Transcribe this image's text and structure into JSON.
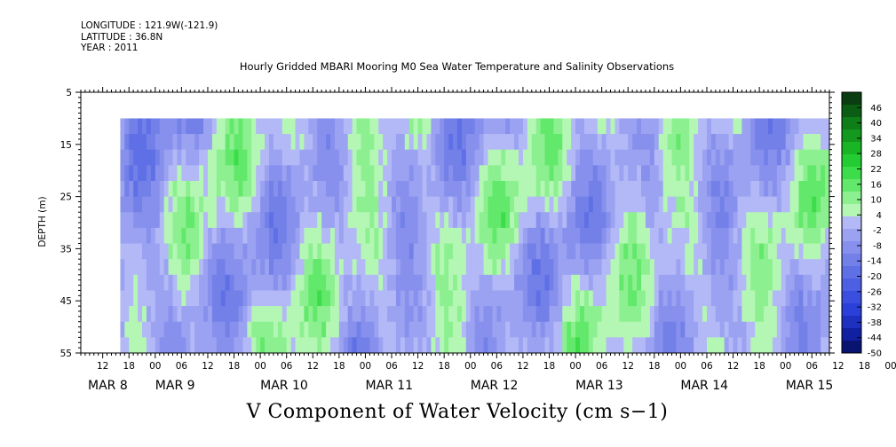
{
  "meta": {
    "longitude": "LONGITUDE : 121.9W(-121.9)",
    "latitude": "LATITUDE : 36.8N",
    "year": "YEAR : 2011"
  },
  "chart_data": {
    "type": "heatmap",
    "title": "Hourly Gridded MBARI Mooring M0 Sea Water Temperature and Salinity Observations",
    "xlabel": "V Component of Water Velocity (cm s−1)",
    "ylabel": "DEPTH (m)",
    "ylim": [
      5,
      55
    ],
    "y_inverted": true,
    "y_ticks": [
      5,
      15,
      25,
      35,
      45,
      55
    ],
    "x_range_hours": [
      "MAR 8 07:00",
      "MAR 15 10:00"
    ],
    "data_start": "MAR 8 16:00",
    "data_depth_range": [
      10,
      55
    ],
    "hour_ticks": [
      "12",
      "18",
      "00",
      "06",
      "12",
      "18",
      "00",
      "06",
      "12",
      "18",
      "00",
      "06",
      "12",
      "18",
      "00",
      "06",
      "12",
      "18",
      "00",
      "06",
      "12",
      "18",
      "00",
      "06",
      "12",
      "18",
      "00",
      "06",
      "12",
      "18",
      "00",
      "06"
    ],
    "date_labels": [
      "MAR  8",
      "MAR  9",
      "MAR 10",
      "MAR 11",
      "MAR 12",
      "MAR 13",
      "MAR 14",
      "MAR 15"
    ],
    "colorbar": {
      "levels": [
        46,
        40,
        34,
        28,
        22,
        16,
        10,
        4,
        -2,
        -8,
        -14,
        -20,
        -26,
        -32,
        -38,
        -44,
        -50
      ],
      "range": [
        -50,
        52
      ],
      "colors": [
        "#0a3d10",
        "#0c5d14",
        "#0f7d18",
        "#13991d",
        "#19b525",
        "#24cc33",
        "#3ddc4a",
        "#62e86a",
        "#8cf090",
        "#b4f7b4",
        "#b3b8f6",
        "#9aa2f1",
        "#8790ec",
        "#7280e8",
        "#5f6fe5",
        "#4d5fe2",
        "#3a4fdf",
        "#2a40d8",
        "#1d30c0",
        "#1020a0",
        "#081470"
      ]
    },
    "grid": false
  }
}
